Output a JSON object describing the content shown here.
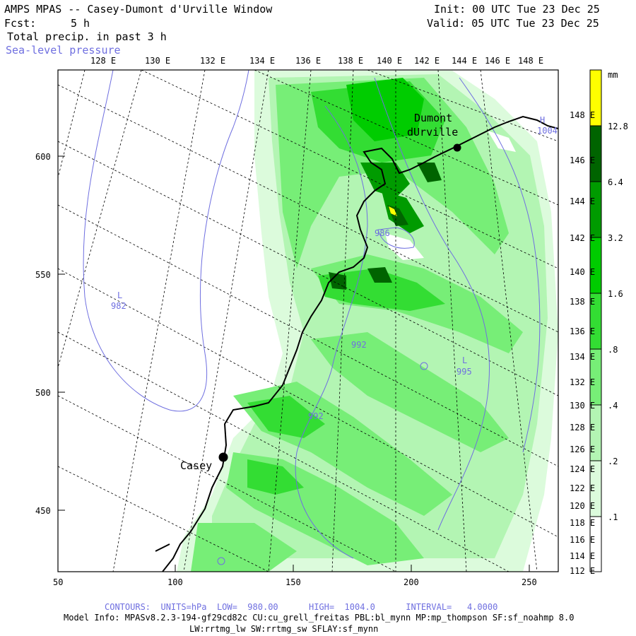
{
  "header": {
    "title": "AMPS MPAS -- Casey-Dumont d'Urville Window",
    "forecast_label": "Fcst:",
    "forecast_value": "5 h",
    "field1": "Total precip. in past 3 h",
    "field2": "Sea-level pressure",
    "init": "Init: 00 UTC Tue 23 Dec 25",
    "valid": "Valid: 05 UTC Tue 23 Dec 25"
  },
  "map": {
    "top_lon_labels": [
      "128 E",
      "130 E",
      "132 E",
      "134 E",
      "136 E",
      "138 E",
      "140 E",
      "142 E",
      "144 E",
      "146 E",
      "148 E"
    ],
    "right_lat_labels": [
      "148 E",
      "146 E",
      "144 E",
      "142 E",
      "140 E",
      "138 E",
      "136 E",
      "134 E",
      "132 E",
      "130 E",
      "128 E",
      "126 E",
      "124 E",
      "122 E",
      "120 E",
      "118 E",
      "116 E",
      "114 E",
      "112 E"
    ],
    "x_ticks": [
      "50",
      "100",
      "150",
      "200",
      "250"
    ],
    "y_ticks": [
      "600",
      "550",
      "500",
      "450"
    ],
    "stations": [
      {
        "name": "Dumont",
        "name2": "dUrville"
      },
      {
        "name": "Casey"
      }
    ],
    "pressure_labels": [
      "L",
      "982",
      "986",
      "992",
      "992",
      "L",
      "995",
      "H",
      "1004"
    ]
  },
  "colorbar": {
    "unit": "mm",
    "levels": [
      "12.8",
      "6.4",
      "3.2",
      "1.6",
      ".8",
      ".4",
      ".2",
      ".1"
    ],
    "colors": [
      "#ffff00",
      "#006400",
      "#009b00",
      "#00cc00",
      "#33dd33",
      "#77ee77",
      "#b3f5b3",
      "#dcfbdc",
      "#ffffff"
    ]
  },
  "footer": {
    "contours": "CONTOURS:  UNITS=hPa  LOW=  980.00      HIGH=  1004.0      INTERVAL=   4.0000",
    "model_info": "Model Info: MPASv8.2.3-194-gf29cd82c CU:cu_grell_freitas PBL:bl_mynn MP:mp_thompson SF:sf_noahmp 8.0",
    "model_info2": "LW:rrtmg_lw SW:rrtmg_sw SFLAY:sf_mynn"
  }
}
